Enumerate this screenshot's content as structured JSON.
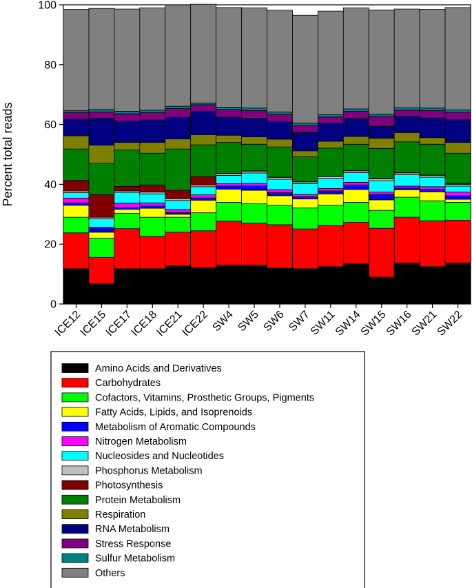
{
  "chart_data": {
    "type": "bar",
    "stacked": true,
    "title": "",
    "xlabel": "",
    "ylabel": "Percent total reads",
    "ylim": [
      0,
      100
    ],
    "yticks": [
      0,
      20,
      40,
      60,
      80,
      100
    ],
    "grid": false,
    "legend_position": "bottom",
    "categories": [
      "ICE12",
      "ICE15",
      "ICE17",
      "ICE18",
      "ICE21",
      "ICE22",
      "SW4",
      "SW5",
      "SW6",
      "SW7",
      "SW11",
      "SW14",
      "SW15",
      "SW16",
      "SW21",
      "SW22"
    ],
    "series": [
      {
        "name": "Amino Acids and Derivatives",
        "color": "#000000",
        "values": [
          11.8,
          6.8,
          11.8,
          11.8,
          12.8,
          12.2,
          13.0,
          13.0,
          12.0,
          11.8,
          12.5,
          13.5,
          9.0,
          13.7,
          12.5,
          13.7
        ]
      },
      {
        "name": "Carbohydrates",
        "color": "#ff0000",
        "values": [
          12.0,
          8.8,
          13.4,
          10.8,
          11.2,
          12.3,
          14.7,
          14.0,
          14.5,
          13.3,
          13.7,
          13.8,
          16.3,
          15.3,
          15.3,
          14.3
        ]
      },
      {
        "name": "Cofactors, Vitamins, Prosthetic Groups, Pigments",
        "color": "#00ff00",
        "values": [
          5.2,
          6.4,
          5.1,
          6.4,
          5.0,
          6.0,
          6.3,
          6.5,
          6.5,
          7.0,
          6.8,
          6.7,
          6.0,
          6.7,
          6.7,
          6.0
        ]
      },
      {
        "name": "Fatty Acids, Lipids, and Isoprenoids",
        "color": "#ffff00",
        "values": [
          4.0,
          2.0,
          1.4,
          3.0,
          1.0,
          4.2,
          4.4,
          4.5,
          3.2,
          3.0,
          3.8,
          4.3,
          3.5,
          2.5,
          3.0,
          1.0
        ]
      },
      {
        "name": "Metabolism of Aromatic Compounds",
        "color": "#0000ff",
        "values": [
          0.8,
          1.4,
          0.6,
          0.8,
          0.6,
          0.8,
          1.0,
          1.5,
          1.0,
          0.7,
          1.0,
          1.5,
          1.8,
          0.6,
          0.9,
          1.2
        ]
      },
      {
        "name": "Nitrogen Metabolism",
        "color": "#ff00ff",
        "values": [
          1.6,
          0.3,
          1.4,
          1.0,
          1.0,
          1.0,
          0.8,
          0.8,
          1.0,
          0.8,
          0.8,
          0.9,
          0.8,
          0.6,
          0.8,
          1.2
        ]
      },
      {
        "name": "Nucleosides and Nucleotides",
        "color": "#00ffff",
        "values": [
          1.8,
          2.8,
          3.6,
          3.0,
          3.0,
          2.7,
          2.8,
          3.5,
          3.5,
          3.6,
          3.4,
          3.2,
          3.8,
          3.8,
          3.2,
          2.0
        ]
      },
      {
        "name": "Phosphorus Metabolism",
        "color": "#c0c0c0",
        "values": [
          0.6,
          0.5,
          0.5,
          0.6,
          0.6,
          0.6,
          0.6,
          0.6,
          0.6,
          0.6,
          0.6,
          0.6,
          0.6,
          0.6,
          0.6,
          0.6
        ]
      },
      {
        "name": "Photosynthesis",
        "color": "#800000",
        "values": [
          3.5,
          7.6,
          1.5,
          2.4,
          2.8,
          2.8,
          0.1,
          0.1,
          0.1,
          0.1,
          0.1,
          0.1,
          0.1,
          0.1,
          0.1,
          0.3
        ]
      },
      {
        "name": "Protein Metabolism",
        "color": "#008000",
        "values": [
          10.5,
          10.4,
          12.2,
          10.6,
          13.8,
          10.6,
          10.3,
          8.9,
          10.1,
          8.3,
          9.4,
          8.8,
          10.1,
          10.3,
          10.3,
          10.1
        ]
      },
      {
        "name": "Respiration",
        "color": "#808000",
        "values": [
          4.4,
          6.1,
          2.5,
          3.6,
          3.4,
          3.4,
          2.4,
          2.5,
          2.6,
          2.0,
          2.3,
          2.6,
          3.4,
          3.1,
          2.2,
          3.6
        ]
      },
      {
        "name": "RNA Metabolism",
        "color": "#000080",
        "values": [
          5.6,
          9.0,
          7.1,
          7.5,
          7.2,
          7.8,
          6.1,
          6.2,
          5.9,
          6.2,
          6.0,
          6.0,
          4.0,
          5.4,
          6.6,
          7.6
        ]
      },
      {
        "name": "Stress Response",
        "color": "#800080",
        "values": [
          2.2,
          2.1,
          2.5,
          2.5,
          2.9,
          2.2,
          2.5,
          2.6,
          2.4,
          2.3,
          2.1,
          2.4,
          3.3,
          2.1,
          2.5,
          2.5
        ]
      },
      {
        "name": "Sulfur Metabolism",
        "color": "#008080",
        "values": [
          0.6,
          0.8,
          0.8,
          0.8,
          0.8,
          0.6,
          0.8,
          0.8,
          0.8,
          0.8,
          0.8,
          0.8,
          0.8,
          0.8,
          0.8,
          0.8
        ]
      },
      {
        "name": "Others",
        "color": "#808080",
        "values": [
          33.9,
          33.8,
          34.2,
          34.2,
          33.9,
          33.0,
          33.3,
          33.5,
          34.0,
          36.0,
          34.6,
          33.8,
          34.8,
          33.0,
          33.0,
          34.2
        ]
      }
    ]
  }
}
